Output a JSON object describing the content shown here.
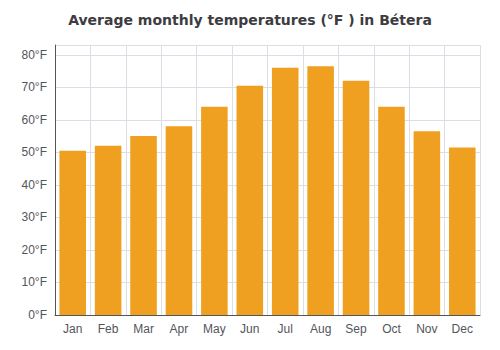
{
  "chart_data": {
    "type": "bar",
    "title": "Average monthly temperatures (°F ) in Bétera",
    "categories": [
      "Jan",
      "Feb",
      "Mar",
      "Apr",
      "May",
      "Jun",
      "Jul",
      "Aug",
      "Sep",
      "Oct",
      "Nov",
      "Dec"
    ],
    "values": [
      50.5,
      52.0,
      55.0,
      58.0,
      64.0,
      70.5,
      76.0,
      76.5,
      72.0,
      64.0,
      56.5,
      51.5
    ],
    "color": "#F0A020",
    "ylim": [
      0,
      83
    ],
    "yticks": [
      {
        "value": 0,
        "label": "0°F"
      },
      {
        "value": 10,
        "label": "10°F"
      },
      {
        "value": 20,
        "label": "20°F"
      },
      {
        "value": 30,
        "label": "30°F"
      },
      {
        "value": 40,
        "label": "40°F"
      },
      {
        "value": 50,
        "label": "50°F"
      },
      {
        "value": 60,
        "label": "60°F"
      },
      {
        "value": 70,
        "label": "70°F"
      },
      {
        "value": 80,
        "label": "80°F"
      }
    ],
    "grid": true
  }
}
